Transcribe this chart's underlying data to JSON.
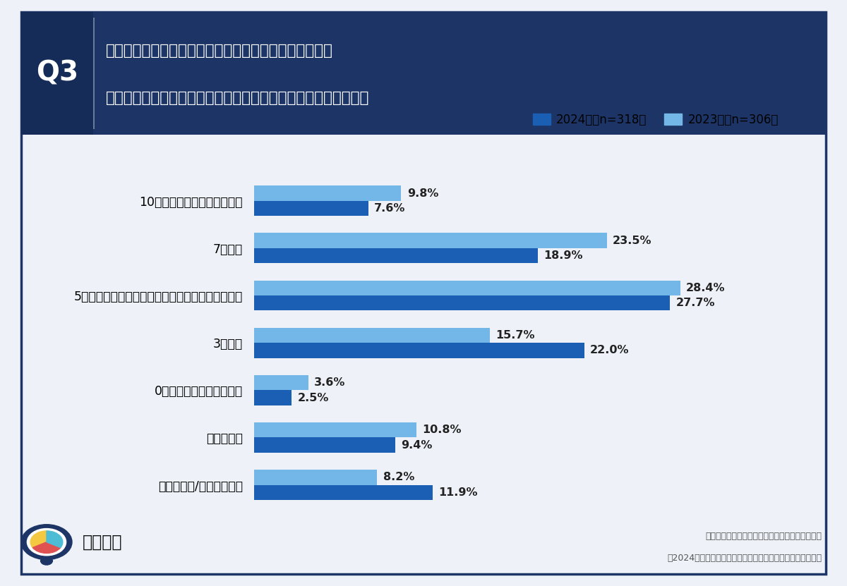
{
  "categories": [
    "10割（全てオンライン会議）",
    "7割程度",
    "5割程度（オンライン会議と対面会議が半分ずつ）",
    "3割程度",
    "0割（全て対面での会議）",
    "会議がない",
    "わからない/答えられない"
  ],
  "values_2024": [
    7.6,
    18.9,
    27.7,
    22.0,
    2.5,
    9.4,
    11.9
  ],
  "values_2023": [
    9.8,
    23.5,
    28.4,
    15.7,
    3.6,
    10.8,
    8.2
  ],
  "color_2024": "#1a5fb4",
  "color_2023": "#72b7e8",
  "legend_2024": "2024年（n=318）",
  "legend_2023": "2023年（n=306）",
  "title_q": "Q3",
  "title_text_line1": "お勤め先企業の社外会議（顧客、取引先、協力会社等を",
  "title_text_line2": "相手とした会議）でのオンライン会議の比率を教えてください。",
  "source_line1": "一般社団法人オンラインコミュニケーション協会",
  "source_line2": "「2024年版」大企業のオンライン会議活用に関する定点調査",
  "bg_color": "#eef2f8",
  "header_bg": "#1c3566",
  "q_box_bg": "#162c58",
  "border_color": "#1c3566",
  "xlim": [
    0,
    35
  ],
  "value_fontsize": 11.5,
  "label_fontsize": 12.5,
  "logo_text": "リサピー"
}
